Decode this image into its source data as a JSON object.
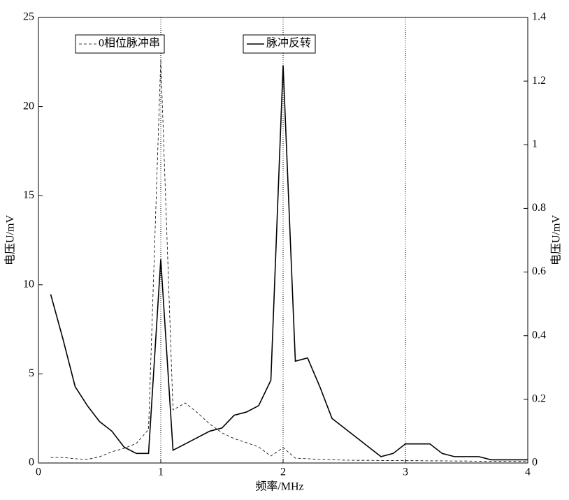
{
  "chart_data": {
    "type": "line",
    "x_label": "频率/MHz",
    "y_label": "电压U/mV",
    "y2_label": "电压U/mV",
    "x": [
      0.1,
      0.2,
      0.3,
      0.4,
      0.5,
      0.6,
      0.7,
      0.8,
      0.9,
      1.0,
      1.1,
      1.2,
      1.3,
      1.4,
      1.5,
      1.6,
      1.7,
      1.8,
      1.9,
      2.0,
      2.1,
      2.2,
      2.3,
      2.4,
      2.5,
      2.6,
      2.7,
      2.8,
      2.9,
      3.0,
      3.1,
      3.2,
      3.3,
      3.4,
      3.5,
      3.6,
      3.7,
      3.8,
      3.9,
      4.0
    ],
    "series": [
      {
        "name": "0相位脉冲串",
        "color": "#000000",
        "dash": "4,3",
        "axis": "y",
        "values": [
          0.31,
          0.31,
          0.24,
          0.2,
          0.35,
          0.63,
          0.82,
          1.1,
          1.88,
          22.65,
          2.98,
          3.37,
          2.82,
          2.19,
          1.69,
          1.37,
          1.14,
          0.9,
          0.39,
          0.86,
          0.27,
          0.24,
          0.2,
          0.18,
          0.16,
          0.15,
          0.15,
          0.14,
          0.14,
          0.13,
          0.13,
          0.12,
          0.12,
          0.11,
          0.11,
          0.1,
          0.1,
          0.1,
          0.09,
          0.09
        ]
      },
      {
        "name": "脉冲反转",
        "color": "#000000",
        "axis": "y2",
        "values": [
          0.53,
          0.39,
          0.24,
          0.18,
          0.13,
          0.1,
          0.05,
          0.03,
          0.03,
          0.64,
          0.04,
          0.06,
          0.08,
          0.1,
          0.11,
          0.15,
          0.16,
          0.18,
          0.26,
          1.25,
          0.32,
          0.33,
          0.24,
          0.14,
          0.11,
          0.08,
          0.05,
          0.02,
          0.03,
          0.06,
          0.06,
          0.06,
          0.03,
          0.02,
          0.02,
          0.02,
          0.01,
          0.01,
          0.01,
          0.01
        ]
      }
    ],
    "xlim": [
      0,
      4
    ],
    "xticks": [
      0,
      1,
      2,
      3,
      4
    ],
    "ylim": [
      0,
      25
    ],
    "yticks": [
      0,
      5,
      10,
      15,
      20,
      25
    ],
    "y2lim": [
      0,
      1.4
    ],
    "y2ticks": [
      0,
      0.2,
      0.4,
      0.6,
      0.8,
      1,
      1.2,
      1.4
    ],
    "x_grid": true,
    "legend": true
  }
}
